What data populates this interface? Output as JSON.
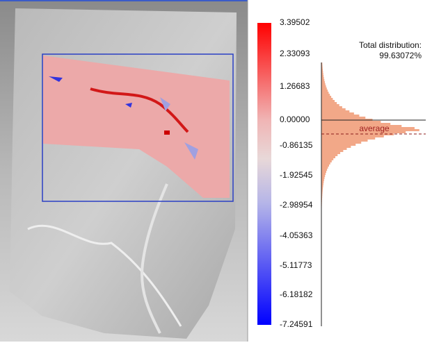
{
  "legend": {
    "ticks": [
      "3.39502",
      "2.33093",
      "1.26683",
      "0.00000",
      "-0.86135",
      "-1.92545",
      "-2.98954",
      "-4.05363",
      "-5.11773",
      "-6.18182",
      "-7.24591"
    ]
  },
  "histogram": {
    "total_label": "Total distribution:",
    "total_value": "99.63072%",
    "average_label": "average"
  }
}
